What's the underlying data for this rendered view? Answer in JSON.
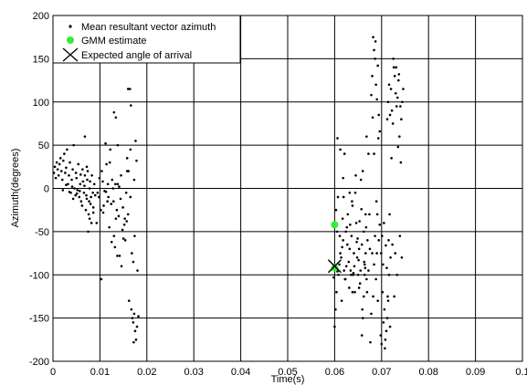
{
  "chart_data": {
    "type": "scatter",
    "xlabel": "Time(s)",
    "ylabel": "Azimuth(degrees)",
    "xlim": [
      0,
      0.1
    ],
    "ylim": [
      -200,
      200
    ],
    "xticks": [
      "0",
      "0.01",
      "0.02",
      "0.03",
      "0.04",
      "0.05",
      "0.06",
      "0.07",
      "0.08",
      "0.09",
      "0.1"
    ],
    "yticks": [
      "200",
      "150",
      "100",
      "50",
      "0",
      "-50",
      "-100",
      "-150",
      "-200"
    ],
    "xtick_values": [
      0,
      0.01,
      0.02,
      0.03,
      0.04,
      0.05,
      0.06,
      0.07,
      0.08,
      0.09,
      0.1
    ],
    "ytick_values": [
      200,
      150,
      100,
      50,
      0,
      -50,
      -100,
      -150,
      -200
    ],
    "grid": true,
    "legend_position": "top-left",
    "series": [
      {
        "name": "Mean resultant vector azimuth",
        "marker": "dot",
        "color": "#000000",
        "points": [
          [
            0.0002,
            18
          ],
          [
            0.0004,
            25
          ],
          [
            0.0006,
            12
          ],
          [
            0.0008,
            30
          ],
          [
            0.001,
            22
          ],
          [
            0.0012,
            15
          ],
          [
            0.0014,
            28
          ],
          [
            0.0016,
            35
          ],
          [
            0.0018,
            20
          ],
          [
            0.002,
            10
          ],
          [
            0.0022,
            32
          ],
          [
            0.0024,
            40
          ],
          [
            0.0026,
            18
          ],
          [
            0.0028,
            24
          ],
          [
            0.003,
            45
          ],
          [
            0.0032,
            5
          ],
          [
            0.0034,
            15
          ],
          [
            0.0036,
            30
          ],
          [
            0.0038,
            -5
          ],
          [
            0.004,
            10
          ],
          [
            0.0042,
            22
          ],
          [
            0.0044,
            50
          ],
          [
            0.0046,
            0
          ],
          [
            0.0048,
            -8
          ],
          [
            0.005,
            12
          ],
          [
            0.0052,
            -2
          ],
          [
            0.0054,
            28
          ],
          [
            0.0056,
            -10
          ],
          [
            0.0058,
            5
          ],
          [
            0.006,
            -15
          ],
          [
            0.0062,
            -20
          ],
          [
            0.0064,
            8
          ],
          [
            0.0066,
            -5
          ],
          [
            0.0068,
            15
          ],
          [
            0.007,
            -25
          ],
          [
            0.0072,
            -12
          ],
          [
            0.0074,
            20
          ],
          [
            0.0076,
            -30
          ],
          [
            0.0078,
            0
          ],
          [
            0.008,
            -18
          ],
          [
            0.0021,
            -2
          ],
          [
            0.0028,
            4
          ],
          [
            0.0035,
            -4
          ],
          [
            0.0041,
            2
          ],
          [
            0.0049,
            18
          ],
          [
            0.0057,
            -3
          ],
          [
            0.0063,
            22
          ],
          [
            0.0071,
            -8
          ],
          [
            0.0079,
            8
          ],
          [
            0.0043,
            -12
          ],
          [
            0.0051,
            -6
          ],
          [
            0.0059,
            16
          ],
          [
            0.0067,
            3
          ],
          [
            0.0073,
            10
          ],
          [
            0.0077,
            -15
          ],
          [
            0.0081,
            -10
          ],
          [
            0.0085,
            -5
          ],
          [
            0.0088,
            5
          ],
          [
            0.0083,
            15
          ],
          [
            0.0086,
            -22
          ],
          [
            0.0068,
            60
          ],
          [
            0.0072,
            25
          ],
          [
            0.0075,
            -50
          ],
          [
            0.0078,
            -35
          ],
          [
            0.0082,
            -40
          ],
          [
            0.0086,
            -28
          ],
          [
            0.009,
            -8
          ],
          [
            0.0095,
            -5
          ],
          [
            0.0098,
            -10
          ],
          [
            0.0102,
            -25
          ],
          [
            0.0104,
            20
          ],
          [
            0.0106,
            8
          ],
          [
            0.0108,
            -20
          ],
          [
            0.011,
            -3
          ],
          [
            0.0112,
            52
          ],
          [
            0.0114,
            28
          ],
          [
            0.0116,
            -15
          ],
          [
            0.0118,
            -10
          ],
          [
            0.012,
            -45
          ],
          [
            0.0122,
            45
          ],
          [
            0.0124,
            -18
          ],
          [
            0.0126,
            10
          ],
          [
            0.0128,
            0
          ],
          [
            0.013,
            -55
          ],
          [
            0.0132,
            -68
          ],
          [
            0.0134,
            -35
          ],
          [
            0.0136,
            -25
          ],
          [
            0.0138,
            5
          ],
          [
            0.014,
            -32
          ],
          [
            0.0142,
            -78
          ],
          [
            0.0144,
            -12
          ],
          [
            0.0146,
            -90
          ],
          [
            0.0148,
            -48
          ],
          [
            0.015,
            -58
          ],
          [
            0.0152,
            -42
          ],
          [
            0.0154,
            -60
          ],
          [
            0.0156,
            -5
          ],
          [
            0.0158,
            35
          ],
          [
            0.016,
            -30
          ],
          [
            0.0093,
            -40
          ],
          [
            0.0099,
            12
          ],
          [
            0.0103,
            -105
          ],
          [
            0.0107,
            -28
          ],
          [
            0.0113,
            -4
          ],
          [
            0.0117,
            5
          ],
          [
            0.0121,
            30
          ],
          [
            0.0125,
            -62
          ],
          [
            0.0129,
            -15
          ],
          [
            0.0133,
            5
          ],
          [
            0.0137,
            -78
          ],
          [
            0.0141,
            2
          ],
          [
            0.0145,
            15
          ],
          [
            0.0149,
            -22
          ],
          [
            0.0153,
            -35
          ],
          [
            0.0157,
            -38
          ],
          [
            0.0161,
            20
          ],
          [
            0.0165,
            -10
          ],
          [
            0.0168,
            -75
          ],
          [
            0.0171,
            -85
          ],
          [
            0.0174,
            -55
          ],
          [
            0.0165,
            45
          ],
          [
            0.0173,
            10
          ],
          [
            0.0176,
            55
          ],
          [
            0.0178,
            32
          ],
          [
            0.013,
            88
          ],
          [
            0.0134,
            82
          ],
          [
            0.0138,
            50
          ],
          [
            0.0158,
            20
          ],
          [
            0.016,
            115
          ],
          [
            0.0164,
            115
          ],
          [
            0.0166,
            96
          ],
          [
            0.0162,
            -130
          ],
          [
            0.0167,
            -140
          ],
          [
            0.0169,
            -150
          ],
          [
            0.0171,
            -155
          ],
          [
            0.0173,
            -145
          ],
          [
            0.0175,
            -165
          ],
          [
            0.0177,
            -175
          ],
          [
            0.0179,
            -160
          ],
          [
            0.0172,
            -178
          ],
          [
            0.0182,
            -148
          ],
          [
            0.018,
            -95
          ],
          [
            0.0598,
            -103
          ],
          [
            0.06,
            -160
          ],
          [
            0.0602,
            -140
          ],
          [
            0.0604,
            -120
          ],
          [
            0.0606,
            -96
          ],
          [
            0.0608,
            -100
          ],
          [
            0.061,
            -88
          ],
          [
            0.0612,
            -75
          ],
          [
            0.0614,
            -80
          ],
          [
            0.0616,
            -68
          ],
          [
            0.0618,
            -60
          ],
          [
            0.062,
            -95
          ],
          [
            0.0622,
            -105
          ],
          [
            0.0624,
            -50
          ],
          [
            0.0626,
            -45
          ],
          [
            0.0628,
            -30
          ],
          [
            0.063,
            -85
          ],
          [
            0.0632,
            -70
          ],
          [
            0.0634,
            -95
          ],
          [
            0.0636,
            -55
          ],
          [
            0.0638,
            -20
          ],
          [
            0.064,
            -98
          ],
          [
            0.0642,
            -90
          ],
          [
            0.0644,
            -5
          ],
          [
            0.0646,
            -40
          ],
          [
            0.0648,
            -80
          ],
          [
            0.065,
            -100
          ],
          [
            0.0652,
            -70
          ],
          [
            0.0654,
            -110
          ],
          [
            0.0656,
            10
          ],
          [
            0.0658,
            -65
          ],
          [
            0.066,
            20
          ],
          [
            0.0662,
            -50
          ],
          [
            0.0664,
            -88
          ],
          [
            0.0666,
            -75
          ],
          [
            0.0668,
            -105
          ],
          [
            0.067,
            -60
          ],
          [
            0.0672,
            -95
          ],
          [
            0.0674,
            -30
          ],
          [
            0.0603,
            -25
          ],
          [
            0.0611,
            -55
          ],
          [
            0.0619,
            -10
          ],
          [
            0.0627,
            -65
          ],
          [
            0.0635,
            -100
          ],
          [
            0.0643,
            -120
          ],
          [
            0.0651,
            -83
          ],
          [
            0.0659,
            -140
          ],
          [
            0.0667,
            -45
          ],
          [
            0.0675,
            -70
          ],
          [
            0.0631,
            -115
          ],
          [
            0.0639,
            -100
          ],
          [
            0.0647,
            -62
          ],
          [
            0.0655,
            -95
          ],
          [
            0.0663,
            -85
          ],
          [
            0.0605,
            -50
          ],
          [
            0.0621,
            40
          ],
          [
            0.0637,
            -15
          ],
          [
            0.0653,
            -38
          ],
          [
            0.0669,
            -120
          ],
          [
            0.0607,
            -10
          ],
          [
            0.0617,
            -35
          ],
          [
            0.0625,
            -90
          ],
          [
            0.0633,
            -42
          ],
          [
            0.0641,
            -75
          ],
          [
            0.0649,
            -58
          ],
          [
            0.0657,
            -24
          ],
          [
            0.0665,
            -92
          ],
          [
            0.0615,
            -130
          ],
          [
            0.0623,
            -105
          ],
          [
            0.0606,
            58
          ],
          [
            0.0612,
            45
          ],
          [
            0.0618,
            12
          ],
          [
            0.0632,
            -5
          ],
          [
            0.0638,
            -120
          ],
          [
            0.0645,
            15
          ],
          [
            0.0652,
            -115
          ],
          [
            0.0658,
            -170
          ],
          [
            0.066,
            -150
          ],
          [
            0.0662,
            -125
          ],
          [
            0.0664,
            -100
          ],
          [
            0.0666,
            -30
          ],
          [
            0.0668,
            60
          ],
          [
            0.0672,
            40
          ],
          [
            0.0676,
            -178
          ],
          [
            0.0678,
            -145
          ],
          [
            0.068,
            -75
          ],
          [
            0.0682,
            -125
          ],
          [
            0.0684,
            -88
          ],
          [
            0.0686,
            -55
          ],
          [
            0.0688,
            -105
          ],
          [
            0.069,
            -75
          ],
          [
            0.0692,
            -130
          ],
          [
            0.0694,
            -60
          ],
          [
            0.0696,
            -42
          ],
          [
            0.0678,
            108
          ],
          [
            0.068,
            130
          ],
          [
            0.0682,
            175
          ],
          [
            0.0684,
            160
          ],
          [
            0.0686,
            150
          ],
          [
            0.0688,
            120
          ],
          [
            0.069,
            103
          ],
          [
            0.0692,
            142
          ],
          [
            0.0694,
            85
          ],
          [
            0.0696,
            66
          ],
          [
            0.0681,
            82
          ],
          [
            0.0687,
            170
          ],
          [
            0.0693,
            58
          ],
          [
            0.0684,
            40
          ],
          [
            0.0689,
            -15
          ],
          [
            0.0691,
            -30
          ],
          [
            0.0698,
            -170
          ],
          [
            0.07,
            -180
          ],
          [
            0.0702,
            -120
          ],
          [
            0.0704,
            -155
          ],
          [
            0.0706,
            -140
          ],
          [
            0.0708,
            -175
          ],
          [
            0.071,
            -165
          ],
          [
            0.0712,
            -150
          ],
          [
            0.0714,
            -130
          ],
          [
            0.0716,
            -100
          ],
          [
            0.0718,
            -160
          ],
          [
            0.0707,
            -185
          ],
          [
            0.0713,
            -125
          ],
          [
            0.0719,
            -80
          ],
          [
            0.0699,
            -75
          ],
          [
            0.0703,
            -88
          ],
          [
            0.0711,
            -92
          ],
          [
            0.0715,
            -60
          ],
          [
            0.0717,
            -30
          ],
          [
            0.0701,
            -55
          ],
          [
            0.0705,
            -40
          ],
          [
            0.0709,
            -66
          ],
          [
            0.0712,
            80
          ],
          [
            0.0714,
            100
          ],
          [
            0.0716,
            120
          ],
          [
            0.0718,
            85
          ],
          [
            0.072,
            115
          ],
          [
            0.0722,
            90
          ],
          [
            0.0724,
            75
          ],
          [
            0.0726,
            140
          ],
          [
            0.0728,
            130
          ],
          [
            0.073,
            110
          ],
          [
            0.0732,
            95
          ],
          [
            0.0734,
            105
          ],
          [
            0.0736,
            125
          ],
          [
            0.0738,
            60
          ],
          [
            0.074,
            95
          ],
          [
            0.0742,
            80
          ],
          [
            0.0744,
            100
          ],
          [
            0.0746,
            115
          ],
          [
            0.0735,
            48
          ],
          [
            0.0741,
            30
          ],
          [
            0.0725,
            150
          ],
          [
            0.0731,
            140
          ],
          [
            0.0737,
            132
          ],
          [
            0.0721,
            35
          ],
          [
            0.0729,
            -75
          ],
          [
            0.0733,
            -100
          ],
          [
            0.0727,
            -125
          ],
          [
            0.0723,
            -65
          ],
          [
            0.0739,
            -55
          ],
          [
            0.0743,
            -80
          ]
        ]
      },
      {
        "name": "GMM estimate",
        "marker": "filled-circle",
        "color": "#33ee33",
        "points": [
          [
            0.06,
            -42
          ],
          [
            0.06,
            -92
          ]
        ]
      },
      {
        "name": "Expected angle of arrival",
        "marker": "x",
        "color": "#000000",
        "points": [
          [
            0.06,
            -90
          ]
        ]
      }
    ]
  }
}
